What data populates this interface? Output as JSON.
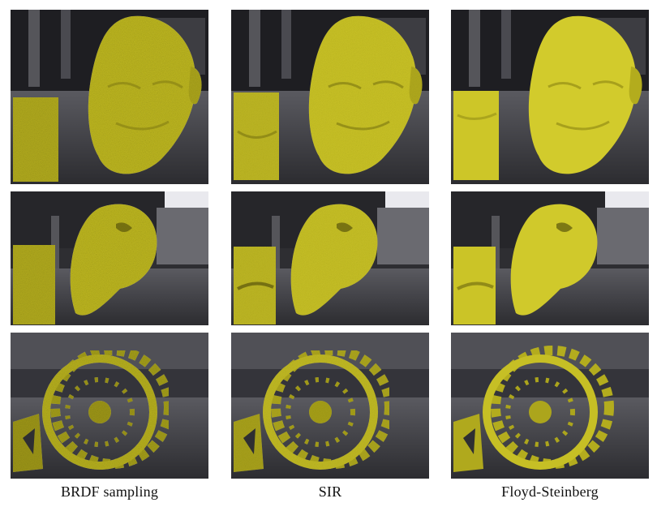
{
  "figure": {
    "columns": [
      {
        "caption": "BRDF sampling",
        "style": "noisy"
      },
      {
        "caption": "SIR",
        "style": "medium"
      },
      {
        "caption": "Floyd-Steinberg",
        "style": "smooth"
      }
    ],
    "rows": [
      {
        "scene": "face-front"
      },
      {
        "scene": "face-side"
      },
      {
        "scene": "gear"
      }
    ],
    "colors": {
      "object": "#c9c22a",
      "object_dark": "#8a8312",
      "object_light": "#e6df4a",
      "environment": "#3a3a3e",
      "sky": "#e9e9ee"
    }
  }
}
